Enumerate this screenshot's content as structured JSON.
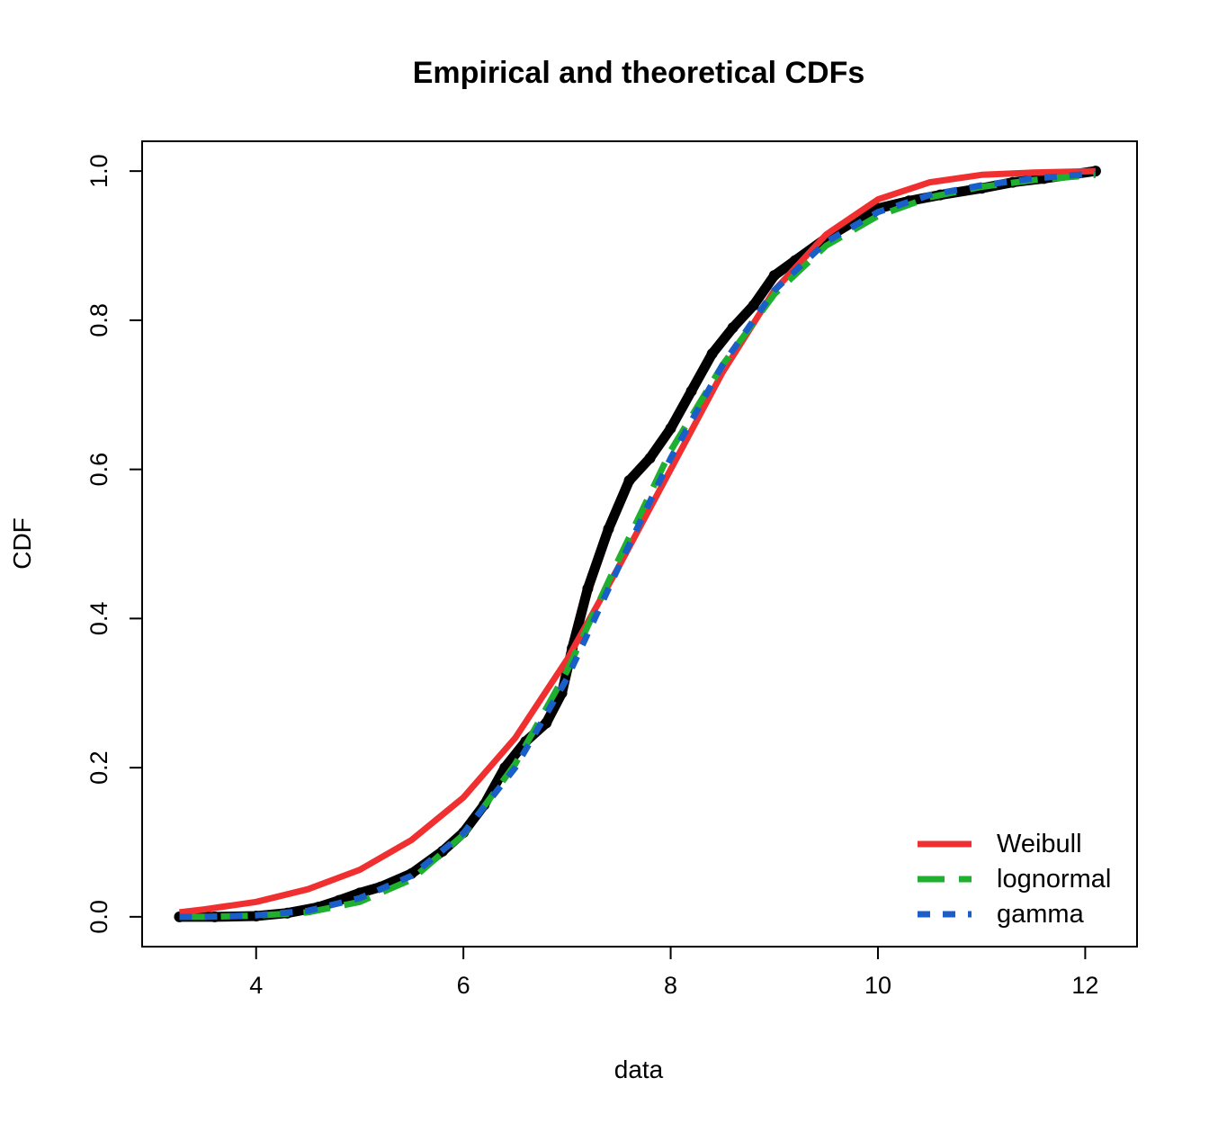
{
  "chart_data": {
    "type": "line",
    "title": "Empirical and theoretical CDFs",
    "xlabel": "data",
    "ylabel": "CDF",
    "xlim": [
      2.9,
      12.5
    ],
    "ylim": [
      -0.04,
      1.04
    ],
    "x_ticks": [
      4,
      6,
      8,
      10,
      12
    ],
    "y_ticks": [
      0.0,
      0.2,
      0.4,
      0.6,
      0.8,
      1.0
    ],
    "x_tick_labels": [
      "4",
      "6",
      "8",
      "10",
      "12"
    ],
    "y_tick_labels": [
      "0.0",
      "0.2",
      "0.4",
      "0.6",
      "0.8",
      "1.0"
    ],
    "grid": false,
    "legend_position": "bottom-right",
    "empirical": {
      "color": "#000000",
      "x": [
        3.26,
        3.6,
        4.0,
        4.3,
        4.6,
        4.8,
        5.0,
        5.2,
        5.5,
        5.8,
        6.0,
        6.2,
        6.4,
        6.6,
        6.8,
        6.95,
        7.05,
        7.2,
        7.4,
        7.6,
        7.8,
        8.0,
        8.2,
        8.4,
        8.6,
        8.8,
        9.0,
        9.2,
        9.5,
        9.8,
        10.0,
        10.3,
        10.6,
        11.0,
        11.3,
        11.6,
        12.1
      ],
      "y": [
        0.0,
        0.0,
        0.001,
        0.005,
        0.013,
        0.022,
        0.032,
        0.04,
        0.058,
        0.088,
        0.113,
        0.15,
        0.2,
        0.235,
        0.26,
        0.3,
        0.36,
        0.44,
        0.52,
        0.585,
        0.615,
        0.655,
        0.705,
        0.755,
        0.79,
        0.82,
        0.86,
        0.88,
        0.91,
        0.935,
        0.95,
        0.96,
        0.968,
        0.977,
        0.985,
        0.99,
        1.0
      ]
    },
    "series": [
      {
        "name": "Weibull",
        "color": "#f03030",
        "dash": "solid",
        "x": [
          3.26,
          3.5,
          4.0,
          4.5,
          5.0,
          5.5,
          6.0,
          6.5,
          7.0,
          7.5,
          8.0,
          8.5,
          9.0,
          9.5,
          10.0,
          10.5,
          11.0,
          11.5,
          12.1
        ],
        "y": [
          0.006,
          0.01,
          0.02,
          0.037,
          0.063,
          0.103,
          0.16,
          0.24,
          0.345,
          0.47,
          0.6,
          0.73,
          0.84,
          0.915,
          0.962,
          0.985,
          0.995,
          0.998,
          1.0
        ]
      },
      {
        "name": "lognormal",
        "color": "#1fb030",
        "dash": "long-dash",
        "x": [
          3.26,
          3.5,
          4.0,
          4.5,
          5.0,
          5.5,
          6.0,
          6.5,
          7.0,
          7.5,
          8.0,
          8.5,
          9.0,
          9.5,
          10.0,
          10.5,
          11.0,
          11.5,
          12.1
        ],
        "y": [
          0.0,
          0.0,
          0.0015,
          0.006,
          0.02,
          0.05,
          0.11,
          0.205,
          0.33,
          0.48,
          0.625,
          0.74,
          0.835,
          0.9,
          0.94,
          0.965,
          0.979,
          0.988,
          0.995
        ]
      },
      {
        "name": "gamma",
        "color": "#1a5ec8",
        "dash": "short-dash",
        "x": [
          3.26,
          3.5,
          4.0,
          4.5,
          5.0,
          5.5,
          6.0,
          6.5,
          7.0,
          7.5,
          8.0,
          8.5,
          9.0,
          9.5,
          10.0,
          10.5,
          11.0,
          11.5,
          12.1
        ],
        "y": [
          0.0,
          0.0,
          0.002,
          0.008,
          0.025,
          0.055,
          0.112,
          0.2,
          0.32,
          0.47,
          0.615,
          0.74,
          0.84,
          0.905,
          0.945,
          0.968,
          0.981,
          0.99,
          0.997
        ]
      }
    ]
  }
}
